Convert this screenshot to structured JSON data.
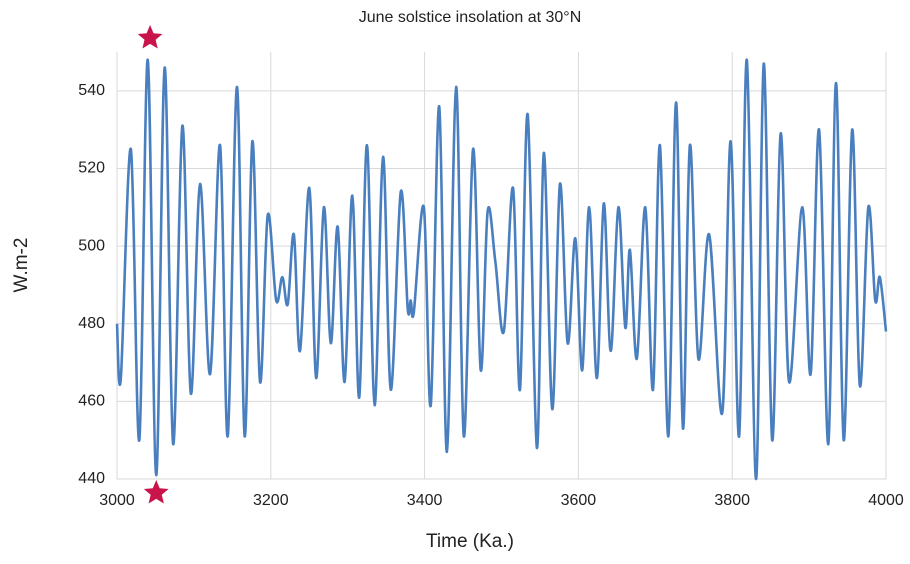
{
  "chart_data": {
    "type": "line",
    "title": "June solstice insolation at 30°N",
    "xlabel": "Time (Ka.)",
    "ylabel": "W.m-2",
    "xlim": [
      3000,
      4000
    ],
    "ylim": [
      440,
      550
    ],
    "xticks": [
      3000,
      3200,
      3400,
      3600,
      3800,
      4000
    ],
    "yticks": [
      440,
      460,
      480,
      500,
      520,
      540
    ],
    "grid": true,
    "stars": {
      "color": "#c8144a",
      "x": [
        3043,
        3051
      ]
    },
    "series": [
      {
        "name": "insolation",
        "color": "#4a7fbf",
        "x": [
          3000,
          3005,
          3018,
          3029,
          3040,
          3051,
          3062,
          3073,
          3085,
          3096,
          3108,
          3121,
          3134,
          3144,
          3156,
          3166,
          3176,
          3186,
          3196,
          3207,
          3215,
          3222,
          3230,
          3238,
          3250,
          3259,
          3269,
          3278,
          3287,
          3296,
          3306,
          3315,
          3325,
          3335,
          3346,
          3356,
          3369,
          3378,
          3382,
          3386,
          3399,
          3408,
          3419,
          3429,
          3441,
          3451,
          3463,
          3473,
          3482,
          3492,
          3503,
          3515,
          3524,
          3534,
          3546,
          3555,
          3566,
          3576,
          3586,
          3596,
          3605,
          3614,
          3624,
          3633,
          3642,
          3652,
          3661,
          3667,
          3676,
          3687,
          3697,
          3706,
          3717,
          3727,
          3736,
          3745,
          3756,
          3770,
          3787,
          3798,
          3809,
          3819,
          3831,
          3841,
          3852,
          3863,
          3874,
          3891,
          3902,
          3913,
          3925,
          3935,
          3945,
          3956,
          3966,
          3977,
          3986,
          3992,
          4000
        ],
        "values": [
          480,
          466,
          525,
          450,
          548,
          441,
          546,
          449,
          531,
          462,
          516,
          467,
          526,
          451,
          541,
          451,
          527,
          465,
          508,
          486,
          492,
          485,
          503,
          473,
          515,
          466,
          510,
          475,
          505,
          465,
          513,
          461,
          526,
          459,
          523,
          463,
          514,
          484,
          486,
          483,
          510,
          459,
          536,
          447,
          541,
          451,
          525,
          468,
          509,
          496,
          478,
          515,
          463,
          534,
          448,
          524,
          458,
          516,
          475,
          502,
          468,
          510,
          466,
          511,
          473,
          510,
          479,
          499,
          471,
          510,
          463,
          526,
          451,
          537,
          453,
          526,
          471,
          503,
          457,
          527,
          451,
          548,
          440,
          547,
          450,
          529,
          465,
          510,
          467,
          530,
          449,
          542,
          450,
          530,
          464,
          510,
          486,
          492,
          478
        ]
      }
    ]
  }
}
